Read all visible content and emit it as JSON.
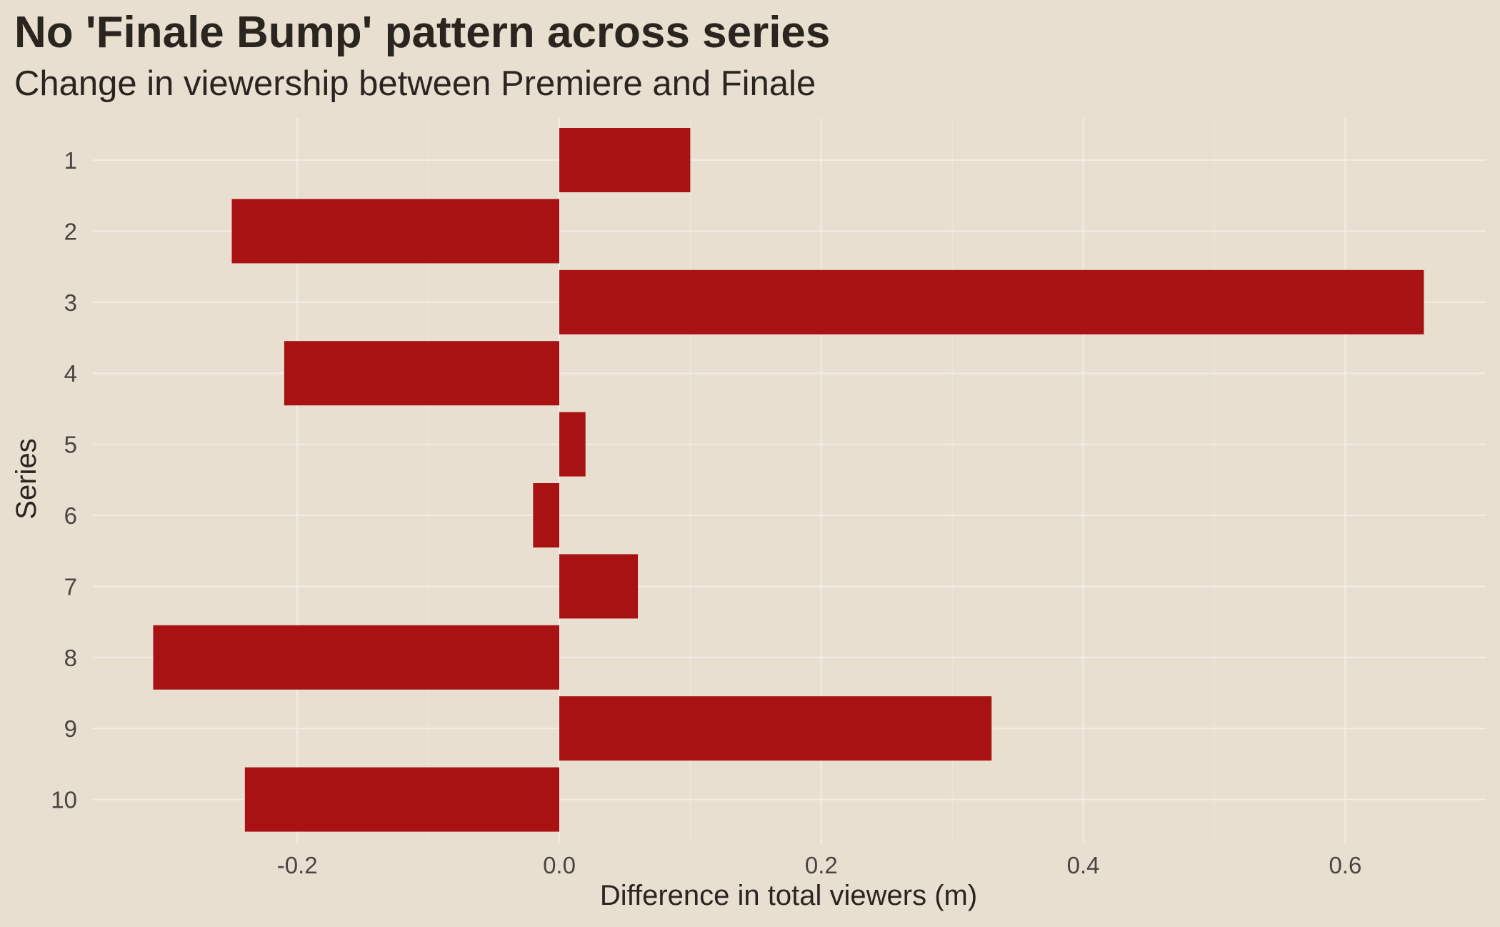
{
  "chart_data": {
    "type": "bar",
    "orientation": "horizontal",
    "title": "No 'Finale Bump' pattern across series",
    "subtitle": "Change in viewership between Premiere and Finale",
    "xlabel": "Difference in total viewers (m)",
    "ylabel": "Series",
    "categories": [
      "1",
      "2",
      "3",
      "4",
      "5",
      "6",
      "7",
      "8",
      "9",
      "10"
    ],
    "values": [
      0.1,
      -0.25,
      0.66,
      -0.21,
      0.02,
      -0.02,
      0.06,
      -0.31,
      0.33,
      -0.24
    ],
    "xlim": [
      -0.36,
      0.71
    ],
    "xticks": [
      -0.2,
      0.0,
      0.2,
      0.4,
      0.6
    ],
    "xtick_labels": [
      "-0.2",
      "0.0",
      "0.2",
      "0.4",
      "0.6"
    ],
    "grid": true,
    "legend": "none",
    "colors": {
      "bar": "#A81213",
      "background": "#E8DFD0",
      "grid": "#F2EDE4",
      "text": "#2B2520",
      "tick_text": "#4A4540"
    }
  }
}
